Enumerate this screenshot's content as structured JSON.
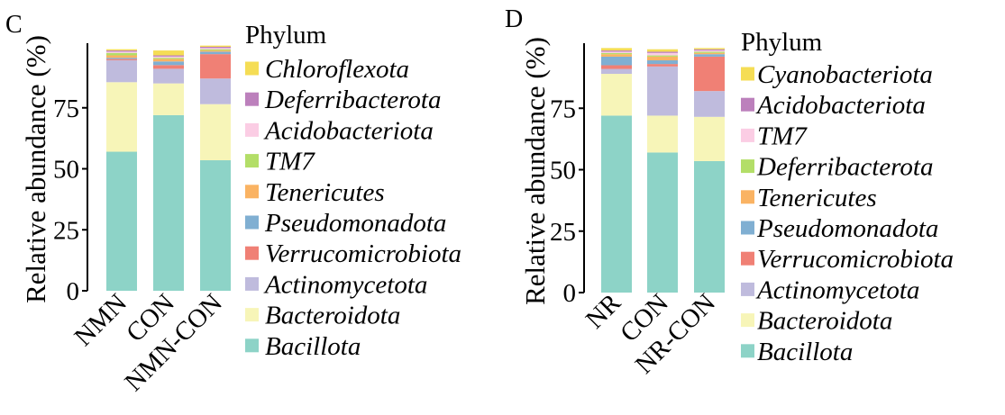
{
  "chart_data": [
    {
      "panel_label": "C",
      "type": "bar",
      "stacked": true,
      "ylabel": "Relative abundance (%)",
      "ylim": [
        0,
        100
      ],
      "yticks": [
        0,
        25,
        50,
        75
      ],
      "categories": [
        "NMN",
        "CON",
        "NMN-CON"
      ],
      "legend_title": "Phylum",
      "legend_position": "right",
      "grid": false,
      "series": [
        {
          "name": "Bacillota",
          "color": "#8dd3c7",
          "values": [
            57.0,
            72.0,
            53.5
          ]
        },
        {
          "name": "Bacteroidota",
          "color": "#f7f5b8",
          "values": [
            28.5,
            13.0,
            23.0
          ]
        },
        {
          "name": "Actinomycetota",
          "color": "#bfbbdd",
          "values": [
            9.0,
            6.0,
            10.5
          ]
        },
        {
          "name": "Verrucomicrobiota",
          "color": "#f08075",
          "values": [
            0.5,
            1.5,
            10.0
          ]
        },
        {
          "name": "Pseudomonadota",
          "color": "#80afd2",
          "values": [
            0.5,
            1.5,
            1.0
          ]
        },
        {
          "name": "Tenericutes",
          "color": "#fab363",
          "values": [
            1.0,
            1.0,
            0.5
          ]
        },
        {
          "name": "TM7",
          "color": "#b3de68",
          "values": [
            1.0,
            0.5,
            0.5
          ]
        },
        {
          "name": "Acidobacteriota",
          "color": "#fbcde4",
          "values": [
            0.5,
            0.5,
            0.5
          ]
        },
        {
          "name": "Deferribacterota",
          "color": "#bc80bc",
          "values": [
            0.5,
            0.5,
            0.5
          ]
        },
        {
          "name": "Chloroflexota",
          "color": "#f5dd55",
          "values": [
            0.5,
            2.0,
            0.5
          ]
        }
      ]
    },
    {
      "panel_label": "D",
      "type": "bar",
      "stacked": true,
      "ylabel": "Relative abundance (%)",
      "ylim": [
        0,
        100
      ],
      "yticks": [
        0,
        25,
        50,
        75
      ],
      "categories": [
        "NR",
        "CON",
        "NR-CON"
      ],
      "legend_title": "Phylum",
      "legend_position": "right",
      "grid": false,
      "series": [
        {
          "name": "Bacillota",
          "color": "#8dd3c7",
          "values": [
            72.0,
            57.0,
            53.5
          ]
        },
        {
          "name": "Bacteroidota",
          "color": "#f7f5b8",
          "values": [
            17.0,
            15.0,
            18.0
          ]
        },
        {
          "name": "Actinomycetota",
          "color": "#bfbbdd",
          "values": [
            2.0,
            20.0,
            10.5
          ]
        },
        {
          "name": "Verrucomicrobiota",
          "color": "#f08075",
          "values": [
            1.5,
            1.0,
            14.0
          ]
        },
        {
          "name": "Pseudomonadota",
          "color": "#80afd2",
          "values": [
            3.5,
            1.5,
            1.0
          ]
        },
        {
          "name": "Tenericutes",
          "color": "#fab363",
          "values": [
            1.0,
            1.5,
            0.5
          ]
        },
        {
          "name": "Deferribacterota",
          "color": "#b3de68",
          "values": [
            0.5,
            0.5,
            0.5
          ]
        },
        {
          "name": "TM7",
          "color": "#fbcde4",
          "values": [
            0.5,
            1.0,
            0.5
          ]
        },
        {
          "name": "Acidobacteriota",
          "color": "#bc80bc",
          "values": [
            0.5,
            0.5,
            0.5
          ]
        },
        {
          "name": "Cyanobacteriota",
          "color": "#f5dd55",
          "values": [
            1.0,
            1.0,
            0.5
          ]
        }
      ]
    }
  ]
}
